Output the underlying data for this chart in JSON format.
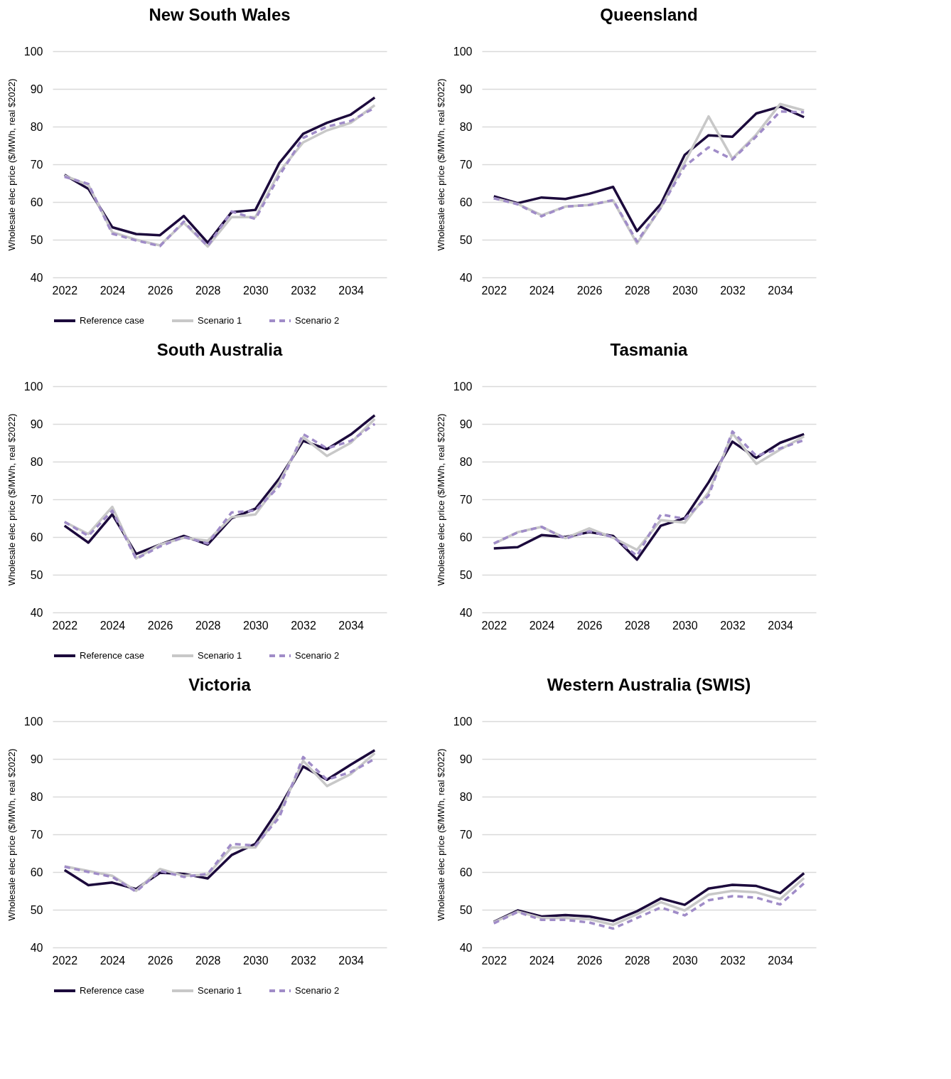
{
  "chart_data": [
    {
      "type": "line",
      "title": "New South Wales",
      "ylabel": "Wholesale elec price ($/MWh, real $2022)",
      "x": [
        2022,
        2023,
        2024,
        2025,
        2026,
        2027,
        2028,
        2029,
        2030,
        2031,
        2032,
        2033,
        2034,
        2035
      ],
      "xlim": [
        2021.5,
        2035.5
      ],
      "xticks": [
        2022,
        2024,
        2026,
        2028,
        2030,
        2032,
        2034
      ],
      "ylim": [
        40,
        100
      ],
      "yticks": [
        40,
        50,
        60,
        70,
        80,
        90,
        100
      ],
      "grid": "y",
      "legend": "bottom",
      "series": [
        {
          "name": "Reference case",
          "color": "#1c0a3c",
          "line_style": "solid",
          "values": [
            67.2,
            63.5,
            53.3,
            51.5,
            51.2,
            56.3,
            49.2,
            57.3,
            57.9,
            70.3,
            78.1,
            81,
            83.2,
            87.7
          ]
        },
        {
          "name": "Scenario 1",
          "color": "#c8c8c8",
          "line_style": "solid",
          "values": [
            67,
            64.5,
            52,
            50,
            48.5,
            54.5,
            48.2,
            56,
            56,
            68,
            75.8,
            79,
            81,
            85.7
          ]
        },
        {
          "name": "Scenario 2",
          "color": "#a08cc8",
          "line_style": "dashed",
          "values": [
            66.7,
            64.8,
            51.6,
            49.8,
            48.3,
            54.8,
            48.3,
            57.5,
            55.5,
            67,
            77,
            80,
            81.5,
            85
          ]
        }
      ]
    },
    {
      "type": "line",
      "title": "Queensland",
      "ylabel": "Wholesale elec price ($/MWh, real $2022)",
      "x": [
        2022,
        2023,
        2024,
        2025,
        2026,
        2027,
        2028,
        2029,
        2030,
        2031,
        2032,
        2033,
        2034,
        2035
      ],
      "xlim": [
        2021.5,
        2035.5
      ],
      "xticks": [
        2022,
        2024,
        2026,
        2028,
        2030,
        2032,
        2034
      ],
      "ylim": [
        40,
        100
      ],
      "yticks": [
        40,
        50,
        60,
        70,
        80,
        90,
        100
      ],
      "grid": "y",
      "legend": "bottom",
      "series": [
        {
          "name": "Reference case",
          "color": "#1c0a3c",
          "line_style": "solid",
          "values": [
            61.5,
            59.7,
            61.2,
            60.8,
            62.2,
            64,
            52.3,
            59.5,
            72.5,
            77.7,
            77.3,
            83.5,
            85.3,
            82.5
          ]
        },
        {
          "name": "Scenario 1",
          "color": "#c8c8c8",
          "line_style": "solid",
          "values": [
            61,
            59.5,
            56.5,
            58.8,
            59.2,
            60.4,
            49,
            58.5,
            70.5,
            82.7,
            71.5,
            77.9,
            86,
            84.3
          ]
        },
        {
          "name": "Scenario 2",
          "color": "#a08cc8",
          "line_style": "dashed",
          "values": [
            61,
            59.4,
            56.2,
            58.8,
            59.2,
            60.5,
            49.5,
            58.5,
            69.5,
            74.5,
            71.3,
            77.4,
            84,
            83.8
          ]
        }
      ]
    },
    {
      "type": "line",
      "title": "South Australia",
      "ylabel": "Wholesale elec price ($/MWh, real $2022)",
      "x": [
        2022,
        2023,
        2024,
        2025,
        2026,
        2027,
        2028,
        2029,
        2030,
        2031,
        2032,
        2033,
        2034,
        2035
      ],
      "xlim": [
        2021.5,
        2035.5
      ],
      "xticks": [
        2022,
        2024,
        2026,
        2028,
        2030,
        2032,
        2034
      ],
      "ylim": [
        40,
        100
      ],
      "yticks": [
        40,
        50,
        60,
        70,
        80,
        90,
        100
      ],
      "grid": "y",
      "legend": "bottom",
      "series": [
        {
          "name": "Reference case",
          "color": "#1c0a3c",
          "line_style": "solid",
          "values": [
            63,
            58.5,
            66,
            55.5,
            58,
            60.3,
            58,
            65,
            67.5,
            75.5,
            85.5,
            83.3,
            87.2,
            92.3
          ]
        },
        {
          "name": "Scenario 1",
          "color": "#c8c8c8",
          "line_style": "solid",
          "values": [
            64,
            60.8,
            68,
            54.3,
            58,
            59.8,
            59,
            65.3,
            66,
            74.5,
            86.5,
            81.5,
            85,
            91.3
          ]
        },
        {
          "name": "Scenario 2",
          "color": "#a08cc8",
          "line_style": "dashed",
          "values": [
            64,
            60.3,
            67,
            54.2,
            57.5,
            60,
            58.3,
            66.5,
            67,
            73.5,
            87.3,
            83.5,
            85.5,
            90
          ]
        }
      ]
    },
    {
      "type": "line",
      "title": "Tasmania",
      "ylabel": "Wholesale elec price ($/MWh, real $2022)",
      "x": [
        2022,
        2023,
        2024,
        2025,
        2026,
        2027,
        2028,
        2029,
        2030,
        2031,
        2032,
        2033,
        2034,
        2035
      ],
      "xlim": [
        2021.5,
        2035.5
      ],
      "xticks": [
        2022,
        2024,
        2026,
        2028,
        2030,
        2032,
        2034
      ],
      "ylim": [
        40,
        100
      ],
      "yticks": [
        40,
        50,
        60,
        70,
        80,
        90,
        100
      ],
      "grid": "y",
      "legend": "bottom",
      "series": [
        {
          "name": "Reference case",
          "color": "#1c0a3c",
          "line_style": "solid",
          "values": [
            57,
            57.3,
            60.5,
            60,
            61.3,
            60.3,
            54,
            63,
            65,
            74.5,
            85.3,
            81,
            85,
            87.3
          ]
        },
        {
          "name": "Scenario 1",
          "color": "#c8c8c8",
          "line_style": "solid",
          "values": [
            58.2,
            61.3,
            62.7,
            59.7,
            62.3,
            59.8,
            56.6,
            64.5,
            63.8,
            71.8,
            87.5,
            79.4,
            83.2,
            86.7
          ]
        },
        {
          "name": "Scenario 2",
          "color": "#a08cc8",
          "line_style": "dashed",
          "values": [
            58.3,
            61.2,
            62.7,
            59.6,
            61.5,
            60,
            55,
            66,
            64.8,
            71,
            88,
            81.5,
            83.5,
            85.7
          ]
        }
      ]
    },
    {
      "type": "line",
      "title": "Victoria",
      "ylabel": "Wholesale elec price ($/MWh, real $2022)",
      "x": [
        2022,
        2023,
        2024,
        2025,
        2026,
        2027,
        2028,
        2029,
        2030,
        2031,
        2032,
        2033,
        2034,
        2035
      ],
      "xlim": [
        2021.5,
        2035.5
      ],
      "xticks": [
        2022,
        2024,
        2026,
        2028,
        2030,
        2032,
        2034
      ],
      "ylim": [
        40,
        100
      ],
      "yticks": [
        40,
        50,
        60,
        70,
        80,
        90,
        100
      ],
      "grid": "y",
      "legend": "bottom",
      "series": [
        {
          "name": "Reference case",
          "color": "#1c0a3c",
          "line_style": "solid",
          "values": [
            60.5,
            56.5,
            57.2,
            55.5,
            59.8,
            59.5,
            58.3,
            64.5,
            67.5,
            77,
            88,
            84.5,
            88.5,
            92.3
          ]
        },
        {
          "name": "Scenario 1",
          "color": "#c8c8c8",
          "line_style": "solid",
          "values": [
            61.5,
            60.3,
            59,
            55,
            60.8,
            59,
            59.3,
            66.5,
            66.5,
            75.5,
            89.5,
            82.8,
            86,
            91.5
          ]
        },
        {
          "name": "Scenario 2",
          "color": "#a08cc8",
          "line_style": "dashed",
          "values": [
            61.4,
            60,
            58.7,
            54.8,
            60.3,
            58.7,
            59.5,
            67.5,
            67,
            74.5,
            90.5,
            84.5,
            86.5,
            90
          ]
        }
      ]
    },
    {
      "type": "line",
      "title": "Western Australia (SWIS)",
      "ylabel": "Wholesale elec price ($/MWh, real $2022)",
      "x": [
        2022,
        2023,
        2024,
        2025,
        2026,
        2027,
        2028,
        2029,
        2030,
        2031,
        2032,
        2033,
        2034,
        2035
      ],
      "xlim": [
        2021.5,
        2035.5
      ],
      "xticks": [
        2022,
        2024,
        2026,
        2028,
        2030,
        2032,
        2034
      ],
      "ylim": [
        40,
        100
      ],
      "yticks": [
        40,
        50,
        60,
        70,
        80,
        90,
        100
      ],
      "grid": "y",
      "legend": "bottom",
      "series": [
        {
          "name": "Reference case",
          "color": "#1c0a3c",
          "line_style": "solid",
          "values": [
            46.8,
            49.8,
            48.2,
            48.6,
            48.2,
            47,
            49.6,
            53,
            51.3,
            55.6,
            56.6,
            56.3,
            54.4,
            59.7
          ]
        },
        {
          "name": "Scenario 1",
          "color": "#c8c8c8",
          "line_style": "solid",
          "values": [
            46.7,
            49.5,
            47.8,
            47.8,
            47.5,
            46,
            48.8,
            52,
            49.8,
            54,
            55,
            54.6,
            52.8,
            58.4
          ]
        },
        {
          "name": "Scenario 2",
          "color": "#a08cc8",
          "line_style": "dashed",
          "values": [
            46.4,
            49.4,
            47.3,
            47.3,
            46.6,
            45,
            47.8,
            50.6,
            48.5,
            52.5,
            53.6,
            53.2,
            51.4,
            57
          ]
        }
      ]
    }
  ]
}
